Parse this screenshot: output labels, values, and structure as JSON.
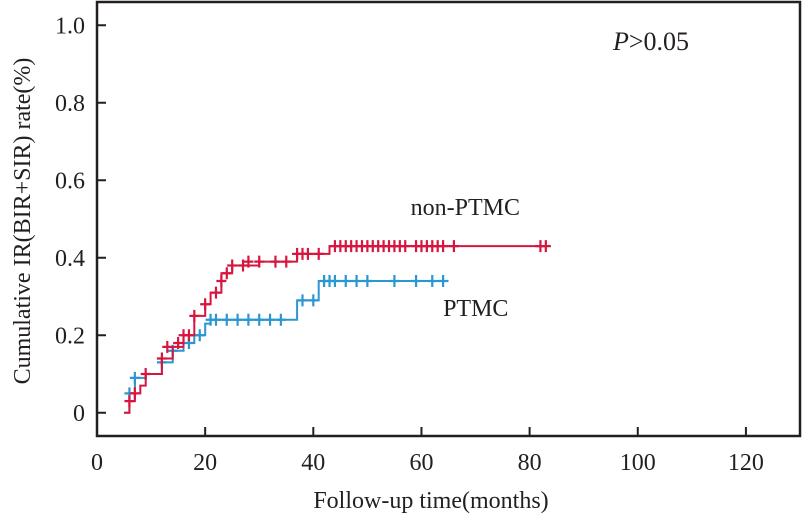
{
  "chart_data": {
    "type": "line",
    "subtype": "kaplan-meier-step",
    "xlabel": "Follow-up time(months)",
    "ylabel": "Cumulative IR(BIR+SIR) rate(%)",
    "xlim": [
      0,
      130
    ],
    "ylim": [
      -0.06,
      1.06
    ],
    "xticks": [
      0,
      20,
      40,
      60,
      80,
      100,
      120
    ],
    "xtick_labels": [
      "0",
      "20",
      "40",
      "60",
      "80",
      "100",
      "120"
    ],
    "yticks": [
      0,
      0.2,
      0.4,
      0.6,
      0.8,
      1.0
    ],
    "ytick_labels": [
      "0",
      "0.2",
      "0.4",
      "0.6",
      "0.8",
      "1.0"
    ],
    "grid": false,
    "annotation": {
      "italic": "P",
      "rest": ">0.05"
    },
    "series": [
      {
        "name": "non-PTMC",
        "color": "#d6163f",
        "label_at": [
          58,
          0.51
        ],
        "steps": [
          [
            5,
            0
          ],
          [
            6,
            0.03
          ],
          [
            7,
            0.05
          ],
          [
            8,
            0.07
          ],
          [
            9,
            0.1
          ],
          [
            12,
            0.14
          ],
          [
            14,
            0.17
          ],
          [
            16,
            0.2
          ],
          [
            18,
            0.25
          ],
          [
            20,
            0.28
          ],
          [
            21,
            0.31
          ],
          [
            23,
            0.36
          ],
          [
            25,
            0.38
          ],
          [
            30,
            0.39
          ],
          [
            37,
            0.41
          ],
          [
            43,
            0.43
          ],
          [
            83,
            0.43
          ]
        ],
        "censored": [
          [
            6,
            0.03
          ],
          [
            7,
            0.05
          ],
          [
            9,
            0.1
          ],
          [
            12,
            0.14
          ],
          [
            13,
            0.17
          ],
          [
            15,
            0.18
          ],
          [
            16,
            0.2
          ],
          [
            17,
            0.2
          ],
          [
            18,
            0.25
          ],
          [
            20,
            0.28
          ],
          [
            22,
            0.31
          ],
          [
            23,
            0.34
          ],
          [
            24,
            0.36
          ],
          [
            25,
            0.38
          ],
          [
            27,
            0.38
          ],
          [
            28,
            0.39
          ],
          [
            30,
            0.39
          ],
          [
            33,
            0.39
          ],
          [
            35,
            0.39
          ],
          [
            37,
            0.41
          ],
          [
            38,
            0.41
          ],
          [
            39,
            0.41
          ],
          [
            41,
            0.41
          ],
          [
            44,
            0.43
          ],
          [
            45,
            0.43
          ],
          [
            46,
            0.43
          ],
          [
            47,
            0.43
          ],
          [
            48,
            0.43
          ],
          [
            49,
            0.43
          ],
          [
            50,
            0.43
          ],
          [
            51,
            0.43
          ],
          [
            52,
            0.43
          ],
          [
            53,
            0.43
          ],
          [
            54,
            0.43
          ],
          [
            55,
            0.43
          ],
          [
            56,
            0.43
          ],
          [
            57,
            0.43
          ],
          [
            59,
            0.43
          ],
          [
            60,
            0.43
          ],
          [
            61,
            0.43
          ],
          [
            62,
            0.43
          ],
          [
            63,
            0.43
          ],
          [
            64,
            0.43
          ],
          [
            66,
            0.43
          ],
          [
            82,
            0.43
          ],
          [
            83,
            0.43
          ]
        ]
      },
      {
        "name": "PTMC",
        "color": "#2a96d2",
        "label_at": [
          64,
          0.25
        ],
        "steps": [
          [
            5,
            0
          ],
          [
            6,
            0.05
          ],
          [
            7,
            0.09
          ],
          [
            9,
            0.1
          ],
          [
            12,
            0.13
          ],
          [
            14,
            0.16
          ],
          [
            16,
            0.18
          ],
          [
            18,
            0.2
          ],
          [
            20,
            0.23
          ],
          [
            21,
            0.24
          ],
          [
            37,
            0.29
          ],
          [
            41,
            0.34
          ],
          [
            65,
            0.34
          ]
        ],
        "censored": [
          [
            6,
            0.05
          ],
          [
            7,
            0.09
          ],
          [
            12,
            0.13
          ],
          [
            14,
            0.16
          ],
          [
            17,
            0.18
          ],
          [
            19,
            0.2
          ],
          [
            21,
            0.24
          ],
          [
            22,
            0.24
          ],
          [
            24,
            0.24
          ],
          [
            26,
            0.24
          ],
          [
            28,
            0.24
          ],
          [
            30,
            0.24
          ],
          [
            32,
            0.24
          ],
          [
            34,
            0.24
          ],
          [
            38,
            0.29
          ],
          [
            40,
            0.29
          ],
          [
            42,
            0.34
          ],
          [
            43,
            0.34
          ],
          [
            44,
            0.34
          ],
          [
            46,
            0.34
          ],
          [
            48,
            0.34
          ],
          [
            50,
            0.34
          ],
          [
            55,
            0.34
          ],
          [
            59,
            0.34
          ],
          [
            62,
            0.34
          ],
          [
            64,
            0.34
          ]
        ]
      }
    ]
  }
}
